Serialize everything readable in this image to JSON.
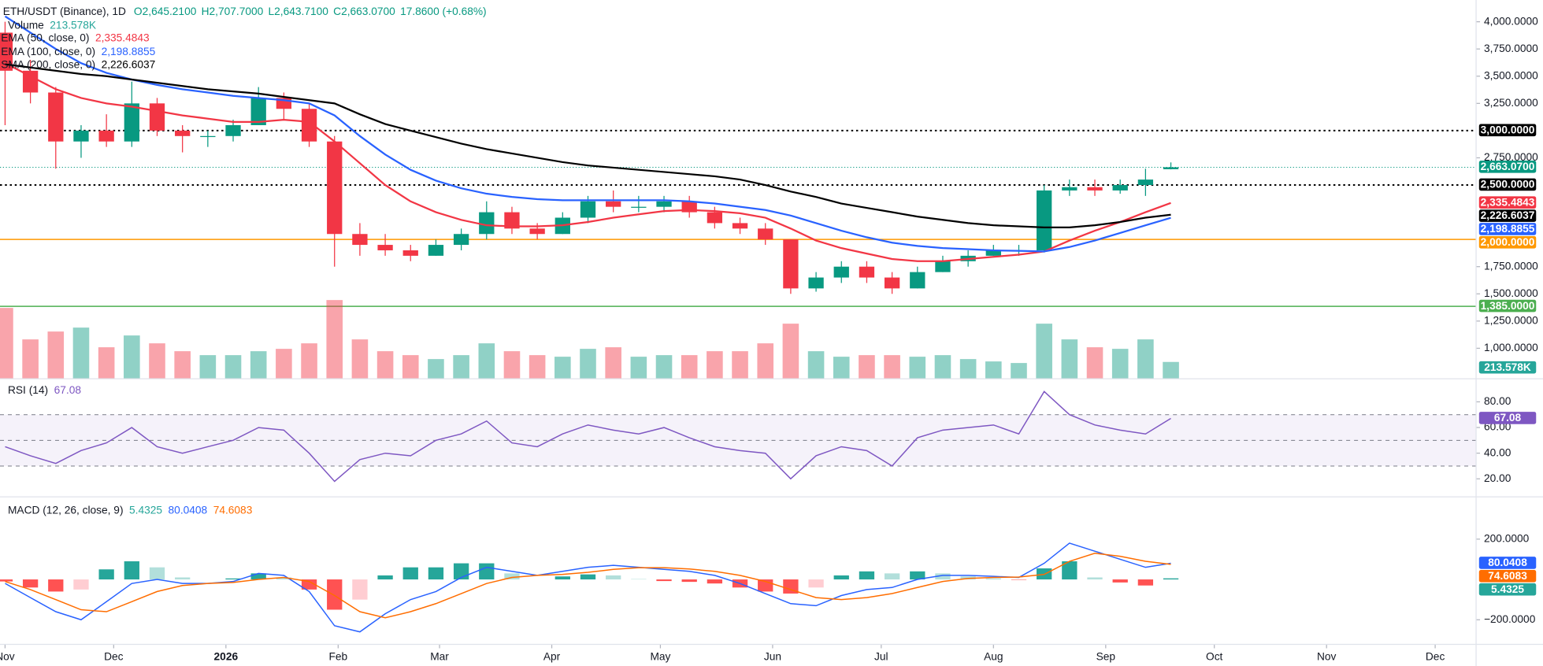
{
  "chart_data": {
    "type": "candlestick",
    "title": "ETH/USDT (Binance), 1D",
    "ohlc_text": [
      "O2,645.2100",
      "H2,707.7000",
      "L2,643.7100",
      "C2,663.0700",
      "17.8600 (+0.68%)"
    ],
    "x": [
      0,
      7,
      14,
      21,
      28,
      35,
      42,
      49,
      56,
      63,
      70,
      77,
      84,
      91,
      98,
      105,
      112,
      119,
      126,
      133,
      140,
      147,
      154,
      161,
      168,
      175,
      182,
      189,
      196,
      203,
      210,
      217,
      224,
      231,
      238,
      245,
      252,
      259,
      266,
      273,
      280,
      287,
      294,
      301,
      308,
      315,
      322
    ],
    "xlim": [
      -1.4,
      406.3
    ],
    "xticks": [
      {
        "value": 0,
        "label": "Nov"
      },
      {
        "value": 30,
        "label": "Dec"
      },
      {
        "value": 61,
        "label": "2026"
      },
      {
        "value": 92,
        "label": "Feb"
      },
      {
        "value": 120,
        "label": "Mar"
      },
      {
        "value": 151,
        "label": "Apr"
      },
      {
        "value": 181,
        "label": "May"
      },
      {
        "value": 212,
        "label": "Jun"
      },
      {
        "value": 242,
        "label": "Jul"
      },
      {
        "value": 273,
        "label": "Aug"
      },
      {
        "value": 304,
        "label": "Sep"
      },
      {
        "value": 334,
        "label": "Oct"
      },
      {
        "value": 365,
        "label": "Nov"
      },
      {
        "value": 395,
        "label": "Dec"
      }
    ],
    "ylim": [
      720,
      4200
    ],
    "yticks": [
      {
        "value": 4000,
        "label": "4,000.0000"
      },
      {
        "value": 3750,
        "label": "3,750.0000"
      },
      {
        "value": 3500,
        "label": "3,500.0000"
      },
      {
        "value": 3250,
        "label": "3,250.0000"
      },
      {
        "value": 2750,
        "label": "2,750.0000"
      },
      {
        "value": 1750,
        "label": "1,750.0000"
      },
      {
        "value": 1500,
        "label": "1,500.0000"
      },
      {
        "value": 1250,
        "label": "1,250.0000"
      },
      {
        "value": 1000,
        "label": "1,000.0000"
      }
    ],
    "up_color": "#089981",
    "down_color": "#f23645",
    "open": [
      3900,
      3550,
      3350,
      2900,
      3000,
      2900,
      3250,
      3000,
      2950,
      2950,
      3050,
      3300,
      3200,
      2900,
      2050,
      1950,
      1900,
      1850,
      1950,
      2050,
      2250,
      2100,
      2050,
      2200,
      2350,
      2300,
      2300,
      2350,
      2250,
      2150,
      2100,
      2000,
      1550,
      1650,
      1750,
      1650,
      1550,
      1700,
      1800,
      1850,
      1900,
      1900,
      2450,
      2480,
      2450,
      2500,
      2645.21
    ],
    "high": [
      4000,
      3650,
      3400,
      3050,
      3150,
      3450,
      3300,
      3050,
      3000,
      3100,
      3400,
      3350,
      3250,
      2950,
      2150,
      2050,
      1950,
      2000,
      2100,
      2350,
      2300,
      2150,
      2250,
      2400,
      2450,
      2400,
      2400,
      2400,
      2300,
      2200,
      2150,
      2000,
      1700,
      1800,
      1800,
      1700,
      1750,
      1850,
      1900,
      1950,
      1950,
      2500,
      2550,
      2550,
      2550,
      2650,
      2707.7
    ],
    "low": [
      3050,
      3250,
      2650,
      2750,
      2850,
      2850,
      2950,
      2800,
      2850,
      2900,
      3050,
      3100,
      2850,
      1750,
      1850,
      1850,
      1800,
      1850,
      1900,
      2000,
      2050,
      2000,
      2050,
      2150,
      2250,
      2250,
      2250,
      2200,
      2100,
      2050,
      1950,
      1500,
      1520,
      1600,
      1600,
      1500,
      1550,
      1700,
      1750,
      1850,
      1850,
      1880,
      2400,
      2400,
      2420,
      2400,
      2643.71
    ],
    "close": [
      3550,
      3350,
      2900,
      3000,
      2900,
      3250,
      3000,
      2950,
      2950,
      3050,
      3300,
      3200,
      2900,
      2050,
      1950,
      1900,
      1850,
      1950,
      2050,
      2250,
      2100,
      2050,
      2200,
      2350,
      2300,
      2300,
      2350,
      2250,
      2150,
      2100,
      2000,
      1550,
      1650,
      1750,
      1650,
      1550,
      1700,
      1800,
      1850,
      1900,
      1900,
      2450,
      2480,
      2450,
      2500,
      2550,
      2663.07
    ],
    "close_label": "2,663.0700",
    "levels": [
      {
        "value": 3000,
        "label": "3,000.0000",
        "color": "#000000",
        "style": "dotted"
      },
      {
        "value": 2500,
        "label": "2,500.0000",
        "color": "#000000",
        "style": "dotted"
      },
      {
        "value": 2000,
        "label": "2,000.0000",
        "color": "#ff9800",
        "style": "solid"
      },
      {
        "value": 1385,
        "label": "1,385.0000",
        "color": "#4caf50",
        "style": "solid"
      }
    ],
    "volume": {
      "name": "Volume",
      "color": "#26a69a",
      "label": "213.578K",
      "values": [
        900,
        500,
        600,
        650,
        400,
        550,
        450,
        350,
        300,
        300,
        350,
        380,
        450,
        1000,
        500,
        350,
        300,
        250,
        300,
        450,
        350,
        300,
        280,
        380,
        400,
        280,
        300,
        300,
        350,
        350,
        450,
        700,
        350,
        280,
        300,
        300,
        280,
        300,
        250,
        220,
        200,
        700,
        500,
        400,
        380,
        500,
        213.578
      ]
    },
    "overlays": [
      {
        "name": "EMA (50, close, 0)",
        "color": "#f23645",
        "label": "2,335.4843",
        "values": [
          3620,
          3500,
          3380,
          3300,
          3250,
          3220,
          3180,
          3140,
          3110,
          3080,
          3080,
          3100,
          3080,
          2900,
          2700,
          2500,
          2350,
          2250,
          2180,
          2130,
          2120,
          2120,
          2130,
          2160,
          2200,
          2230,
          2260,
          2270,
          2260,
          2240,
          2200,
          2100,
          1990,
          1920,
          1870,
          1820,
          1800,
          1800,
          1820,
          1840,
          1860,
          1890,
          1990,
          2080,
          2160,
          2250,
          2335.4843
        ]
      },
      {
        "name": "EMA (100, close, 0)",
        "color": "#2962ff",
        "label": "2,198.8855",
        "values": [
          4050,
          3900,
          3750,
          3620,
          3530,
          3470,
          3420,
          3380,
          3350,
          3320,
          3300,
          3280,
          3250,
          3140,
          2950,
          2780,
          2640,
          2540,
          2470,
          2420,
          2390,
          2370,
          2360,
          2360,
          2360,
          2360,
          2360,
          2350,
          2330,
          2300,
          2270,
          2220,
          2150,
          2080,
          2020,
          1970,
          1940,
          1920,
          1910,
          1900,
          1895,
          1890,
          1930,
          1990,
          2060,
          2130,
          2198.8855
        ]
      },
      {
        "name": "SMA (200, close, 0)",
        "color": "#000000",
        "label": "2,226.6037",
        "values": [
          3610,
          3580,
          3550,
          3520,
          3500,
          3470,
          3440,
          3410,
          3380,
          3360,
          3340,
          3310,
          3280,
          3250,
          3150,
          3060,
          3000,
          2940,
          2880,
          2830,
          2790,
          2750,
          2710,
          2680,
          2660,
          2640,
          2620,
          2600,
          2580,
          2550,
          2500,
          2440,
          2390,
          2330,
          2290,
          2250,
          2210,
          2180,
          2150,
          2130,
          2120,
          2110,
          2110,
          2130,
          2160,
          2200,
          2226.6037
        ]
      }
    ],
    "rsi": {
      "name": "RSI (14)",
      "color": "#7e57c2",
      "label": "67.08",
      "ylim": [
        6,
        98
      ],
      "yticks": [
        {
          "value": 80,
          "label": "80.00"
        },
        {
          "value": 60,
          "label": "60.00"
        },
        {
          "value": 40,
          "label": "40.00"
        },
        {
          "value": 20,
          "label": "20.00"
        }
      ],
      "bands": [
        70,
        50,
        30
      ],
      "values": [
        45,
        38,
        32,
        42,
        48,
        60,
        45,
        40,
        45,
        50,
        60,
        58,
        40,
        18,
        35,
        40,
        38,
        50,
        55,
        65,
        48,
        45,
        55,
        62,
        58,
        55,
        60,
        52,
        45,
        42,
        40,
        20,
        38,
        45,
        42,
        30,
        52,
        58,
        60,
        62,
        55,
        88,
        70,
        62,
        58,
        55,
        67.08
      ]
    },
    "macd": {
      "name": "MACD (12, 26, close, 9)",
      "ylim": [
        -322,
        410
      ],
      "yticks": [
        {
          "value": 200,
          "label": "200.0000"
        },
        {
          "value": -200,
          "label": "−200.0000"
        }
      ],
      "histogram": {
        "color": "#26a69a",
        "label": "5.4325",
        "values": [
          -10,
          -40,
          -60,
          -50,
          50,
          90,
          60,
          10,
          0,
          5,
          30,
          10,
          -50,
          -150,
          -100,
          20,
          60,
          60,
          80,
          80,
          30,
          0,
          15,
          25,
          20,
          2,
          -8,
          -12,
          -20,
          -40,
          -60,
          -70,
          -40,
          20,
          40,
          30,
          40,
          30,
          15,
          5,
          -2,
          55,
          90,
          10,
          -15,
          -30,
          5.4325
        ]
      },
      "macd": {
        "color": "#2962ff",
        "label": "80.0408",
        "values": [
          -20,
          -90,
          -160,
          -200,
          -110,
          -20,
          0,
          -20,
          -20,
          -10,
          30,
          20,
          -60,
          -230,
          -260,
          -170,
          -100,
          -60,
          10,
          60,
          40,
          20,
          40,
          60,
          70,
          60,
          50,
          40,
          20,
          -20,
          -70,
          -120,
          -130,
          -80,
          -50,
          -40,
          0,
          20,
          20,
          15,
          10,
          80,
          180,
          140,
          100,
          60,
          80.0408
        ]
      },
      "signal": {
        "color": "#ff6d00",
        "label": "74.6083",
        "values": [
          -10,
          -50,
          -100,
          -150,
          -160,
          -110,
          -60,
          -30,
          -20,
          -15,
          0,
          10,
          -10,
          -80,
          -160,
          -190,
          -160,
          -120,
          -70,
          -20,
          10,
          20,
          25,
          35,
          50,
          58,
          58,
          52,
          40,
          20,
          -10,
          -50,
          -90,
          -100,
          -90,
          -70,
          -40,
          -10,
          5,
          10,
          12,
          25,
          90,
          130,
          115,
          90,
          74.6083
        ]
      }
    }
  }
}
